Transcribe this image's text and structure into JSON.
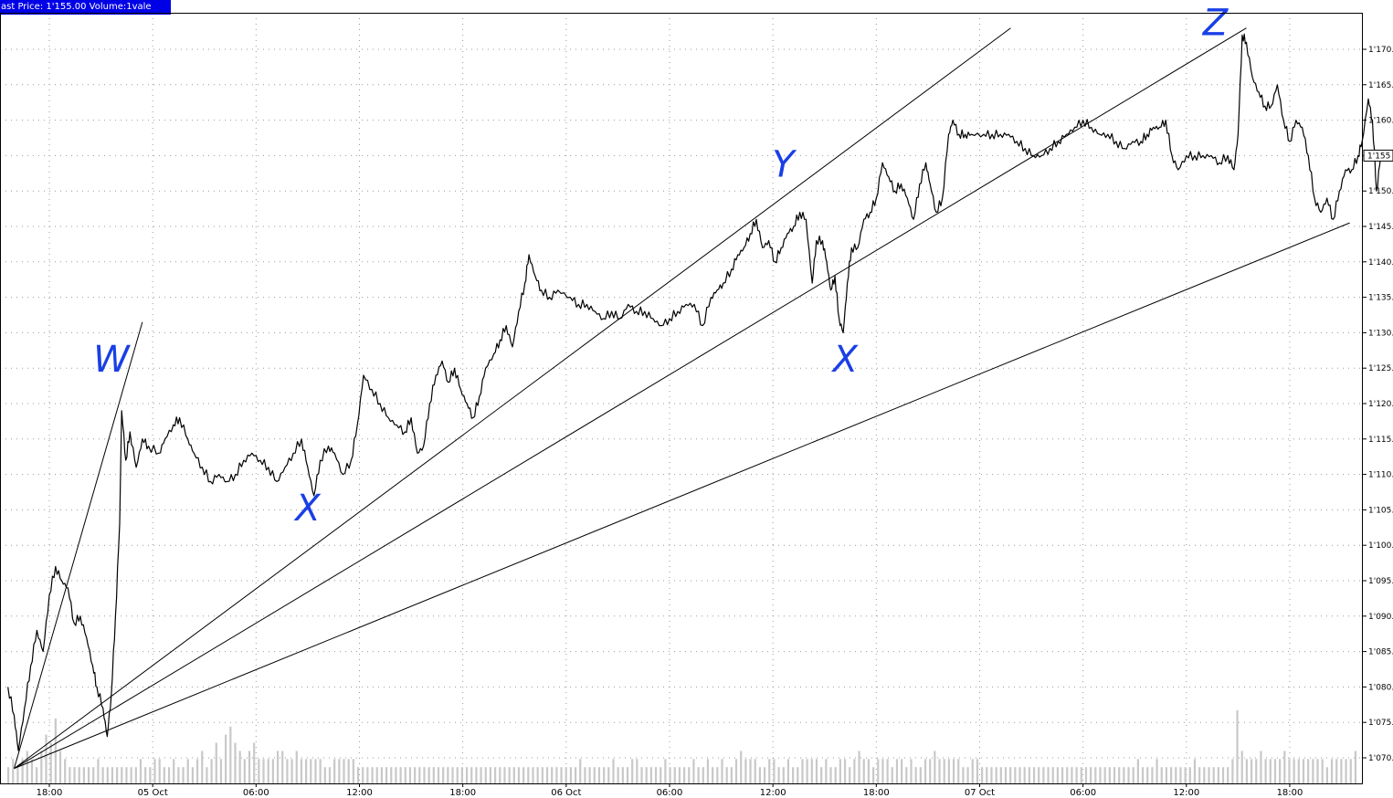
{
  "header": {
    "label": "ast Price: 1'155.00 Volume:1vale"
  },
  "colors": {
    "price_line": "#000000",
    "volume": "#c8c8c8",
    "grid": "#9a9a9a",
    "labels": "#1a3fe6",
    "header_bg": "#0000e6"
  },
  "last_price_label": "1'155",
  "chart_data": {
    "type": "line",
    "title": "",
    "xlabel": "",
    "ylabel": "",
    "ylim": [
      1068,
      1174
    ],
    "xlim": [
      0,
      68
    ],
    "grid": true,
    "y_ticks": [
      {
        "value": 1070,
        "label": "1'070."
      },
      {
        "value": 1075,
        "label": "1'075."
      },
      {
        "value": 1080,
        "label": "1'080."
      },
      {
        "value": 1085,
        "label": "1'085."
      },
      {
        "value": 1090,
        "label": "1'090."
      },
      {
        "value": 1095,
        "label": "1'095."
      },
      {
        "value": 1100,
        "label": "1'100."
      },
      {
        "value": 1105,
        "label": "1'105."
      },
      {
        "value": 1110,
        "label": "1'110."
      },
      {
        "value": 1115,
        "label": "1'115."
      },
      {
        "value": 1120,
        "label": "1'120."
      },
      {
        "value": 1125,
        "label": "1'125."
      },
      {
        "value": 1130,
        "label": "1'130."
      },
      {
        "value": 1135,
        "label": "1'135."
      },
      {
        "value": 1140,
        "label": "1'140."
      },
      {
        "value": 1145,
        "label": "1'145."
      },
      {
        "value": 1150,
        "label": "1'150."
      },
      {
        "value": 1155,
        "label": "1'155."
      },
      {
        "value": 1160,
        "label": "1'160."
      },
      {
        "value": 1165,
        "label": "1'165."
      },
      {
        "value": 1170,
        "label": "1'170."
      }
    ],
    "x_ticks": [
      {
        "value": 2,
        "label": "18:00"
      },
      {
        "value": 7,
        "label": "05 Oct"
      },
      {
        "value": 12,
        "label": "06:00"
      },
      {
        "value": 17,
        "label": "12:00"
      },
      {
        "value": 22,
        "label": "18:00"
      },
      {
        "value": 27,
        "label": "06 Oct"
      },
      {
        "value": 32,
        "label": "06:00"
      },
      {
        "value": 37,
        "label": "12:00"
      },
      {
        "value": 42,
        "label": "18:00"
      },
      {
        "value": 47,
        "label": "07 Oct"
      },
      {
        "value": 52,
        "label": "06:00"
      },
      {
        "value": 57,
        "label": "12:00"
      },
      {
        "value": 62,
        "label": "18:00"
      }
    ],
    "series": [
      {
        "points": [
          [
            0.0,
            1080
          ],
          [
            0.3,
            1076
          ],
          [
            0.5,
            1071
          ],
          [
            0.8,
            1077
          ],
          [
            1.1,
            1083
          ],
          [
            1.4,
            1088
          ],
          [
            1.7,
            1085
          ],
          [
            2.0,
            1093
          ],
          [
            2.3,
            1097
          ],
          [
            2.6,
            1095
          ],
          [
            2.9,
            1094
          ],
          [
            3.2,
            1089
          ],
          [
            3.5,
            1090
          ],
          [
            3.8,
            1087
          ],
          [
            4.1,
            1083
          ],
          [
            4.3,
            1080
          ],
          [
            4.6,
            1077
          ],
          [
            4.8,
            1073
          ],
          [
            5.0,
            1079
          ],
          [
            5.2,
            1090
          ],
          [
            5.4,
            1103
          ],
          [
            5.5,
            1119
          ],
          [
            5.7,
            1112
          ],
          [
            5.9,
            1116
          ],
          [
            6.2,
            1111
          ],
          [
            6.5,
            1115
          ],
          [
            6.8,
            1114
          ],
          [
            7.3,
            1113
          ],
          [
            7.6,
            1115
          ],
          [
            8.0,
            1117
          ],
          [
            8.3,
            1118
          ],
          [
            8.7,
            1115
          ],
          [
            9.0,
            1113
          ],
          [
            9.4,
            1111
          ],
          [
            9.8,
            1109
          ],
          [
            10.2,
            1110
          ],
          [
            10.6,
            1109
          ],
          [
            11.0,
            1110
          ],
          [
            11.4,
            1112
          ],
          [
            11.8,
            1113
          ],
          [
            12.2,
            1112
          ],
          [
            12.6,
            1111
          ],
          [
            13.0,
            1109
          ],
          [
            13.4,
            1111
          ],
          [
            13.8,
            1113
          ],
          [
            14.2,
            1115
          ],
          [
            14.5,
            1111
          ],
          [
            14.8,
            1107
          ],
          [
            15.1,
            1112
          ],
          [
            15.5,
            1114
          ],
          [
            15.8,
            1113
          ],
          [
            16.2,
            1110
          ],
          [
            16.6,
            1112
          ],
          [
            16.9,
            1117
          ],
          [
            17.2,
            1124
          ],
          [
            17.6,
            1122
          ],
          [
            18.0,
            1120
          ],
          [
            18.4,
            1118
          ],
          [
            18.8,
            1117
          ],
          [
            19.2,
            1116
          ],
          [
            19.5,
            1118
          ],
          [
            19.8,
            1113
          ],
          [
            20.1,
            1114
          ],
          [
            20.4,
            1120
          ],
          [
            20.7,
            1124
          ],
          [
            21.0,
            1126
          ],
          [
            21.3,
            1123
          ],
          [
            21.6,
            1125
          ],
          [
            21.9,
            1122
          ],
          [
            22.2,
            1120
          ],
          [
            22.5,
            1118
          ],
          [
            22.8,
            1121
          ],
          [
            23.1,
            1125
          ],
          [
            23.5,
            1127
          ],
          [
            23.8,
            1129
          ],
          [
            24.1,
            1131
          ],
          [
            24.4,
            1128
          ],
          [
            24.7,
            1133
          ],
          [
            25.0,
            1137
          ],
          [
            25.2,
            1141
          ],
          [
            25.5,
            1138
          ],
          [
            25.8,
            1136
          ],
          [
            26.2,
            1135
          ],
          [
            26.6,
            1136
          ],
          [
            27.2,
            1135
          ],
          [
            27.6,
            1134
          ],
          [
            28.0,
            1134
          ],
          [
            28.4,
            1133
          ],
          [
            28.8,
            1132
          ],
          [
            29.2,
            1133
          ],
          [
            29.6,
            1132
          ],
          [
            30.0,
            1134
          ],
          [
            30.4,
            1133
          ],
          [
            30.8,
            1133
          ],
          [
            31.2,
            1132
          ],
          [
            31.6,
            1131
          ],
          [
            32.0,
            1132
          ],
          [
            32.4,
            1133
          ],
          [
            32.8,
            1134
          ],
          [
            33.2,
            1134
          ],
          [
            33.6,
            1131
          ],
          [
            34.0,
            1135
          ],
          [
            34.3,
            1136
          ],
          [
            34.6,
            1137
          ],
          [
            35.0,
            1139
          ],
          [
            35.3,
            1141
          ],
          [
            35.6,
            1142
          ],
          [
            35.9,
            1144
          ],
          [
            36.2,
            1146
          ],
          [
            36.5,
            1142
          ],
          [
            36.8,
            1143
          ],
          [
            37.1,
            1140
          ],
          [
            37.4,
            1142
          ],
          [
            37.7,
            1144
          ],
          [
            38.0,
            1145
          ],
          [
            38.3,
            1147
          ],
          [
            38.6,
            1146
          ],
          [
            38.9,
            1137
          ],
          [
            39.1,
            1143
          ],
          [
            39.4,
            1143
          ],
          [
            39.6,
            1140
          ],
          [
            39.8,
            1136
          ],
          [
            40.0,
            1138
          ],
          [
            40.2,
            1132
          ],
          [
            40.4,
            1130
          ],
          [
            40.6,
            1137
          ],
          [
            40.8,
            1142
          ],
          [
            41.1,
            1142
          ],
          [
            41.4,
            1146
          ],
          [
            41.7,
            1147
          ],
          [
            42.0,
            1149
          ],
          [
            42.3,
            1154
          ],
          [
            42.6,
            1152
          ],
          [
            42.9,
            1150
          ],
          [
            43.2,
            1151
          ],
          [
            43.5,
            1149
          ],
          [
            43.8,
            1146
          ],
          [
            44.1,
            1151
          ],
          [
            44.4,
            1154
          ],
          [
            44.6,
            1151
          ],
          [
            44.9,
            1147
          ],
          [
            45.2,
            1149
          ],
          [
            45.5,
            1158
          ],
          [
            45.7,
            1160
          ],
          [
            46.0,
            1158
          ],
          [
            46.3,
            1158
          ],
          [
            46.6,
            1158
          ],
          [
            47.2,
            1158
          ],
          [
            47.6,
            1158
          ],
          [
            48.0,
            1158
          ],
          [
            48.4,
            1158
          ],
          [
            48.8,
            1157
          ],
          [
            49.2,
            1156
          ],
          [
            49.6,
            1155
          ],
          [
            50.0,
            1155
          ],
          [
            50.4,
            1156
          ],
          [
            50.8,
            1157
          ],
          [
            51.2,
            1158
          ],
          [
            51.6,
            1159
          ],
          [
            52.0,
            1160
          ],
          [
            52.4,
            1159
          ],
          [
            52.8,
            1158
          ],
          [
            53.2,
            1158
          ],
          [
            53.6,
            1157
          ],
          [
            54.0,
            1156
          ],
          [
            54.4,
            1157
          ],
          [
            54.8,
            1157
          ],
          [
            55.1,
            1158
          ],
          [
            55.4,
            1159
          ],
          [
            55.7,
            1159
          ],
          [
            56.0,
            1160
          ],
          [
            56.3,
            1155
          ],
          [
            56.6,
            1153
          ],
          [
            57.0,
            1155
          ],
          [
            57.4,
            1155
          ],
          [
            57.8,
            1155
          ],
          [
            58.2,
            1155
          ],
          [
            58.6,
            1154
          ],
          [
            59.0,
            1155
          ],
          [
            59.3,
            1153
          ],
          [
            59.5,
            1158
          ],
          [
            59.7,
            1172
          ],
          [
            59.9,
            1171
          ],
          [
            60.2,
            1166
          ],
          [
            60.5,
            1164
          ],
          [
            60.8,
            1162
          ],
          [
            61.1,
            1162
          ],
          [
            61.4,
            1165
          ],
          [
            61.7,
            1160
          ],
          [
            62.0,
            1157
          ],
          [
            62.3,
            1160
          ],
          [
            62.6,
            1159
          ],
          [
            62.9,
            1155
          ],
          [
            63.2,
            1149
          ],
          [
            63.5,
            1147
          ],
          [
            63.8,
            1149
          ],
          [
            64.1,
            1146
          ],
          [
            64.4,
            1150
          ],
          [
            64.7,
            1153
          ],
          [
            65.0,
            1153
          ],
          [
            65.3,
            1155
          ],
          [
            65.5,
            1157
          ],
          [
            65.8,
            1163
          ],
          [
            66.0,
            1160
          ],
          [
            66.2,
            1150
          ],
          [
            66.4,
            1155
          ]
        ]
      }
    ],
    "volume": [
      2,
      3,
      2,
      3,
      4,
      3,
      2,
      4,
      6,
      5,
      8,
      4,
      3,
      2,
      2,
      2,
      2,
      2,
      2,
      3,
      2,
      2,
      2,
      2,
      2,
      2,
      2,
      2,
      3,
      2,
      2,
      3,
      3,
      2,
      2,
      3,
      2,
      2,
      3,
      2,
      3,
      4,
      2,
      3,
      5,
      3,
      6,
      7,
      5,
      4,
      3,
      4,
      5,
      3,
      3,
      3,
      3,
      4,
      4,
      3,
      3,
      4,
      3,
      3,
      3,
      3,
      3,
      2,
      2,
      3,
      3,
      3,
      3,
      3,
      2,
      2,
      2,
      2,
      2,
      2,
      2,
      2,
      2,
      2,
      2,
      2,
      2,
      2,
      2,
      2,
      2,
      2,
      2,
      2,
      2,
      2,
      2,
      2,
      2,
      2,
      2,
      2,
      2,
      2,
      2,
      2,
      2,
      2,
      2,
      2,
      2,
      2,
      2,
      2,
      2,
      2,
      2,
      2,
      2,
      2,
      2,
      3,
      2,
      2,
      2,
      2,
      2,
      2,
      3,
      2,
      2,
      2,
      3,
      3,
      2,
      2,
      2,
      2,
      2,
      3,
      2,
      2,
      2,
      2,
      2,
      3,
      2,
      2,
      3,
      2,
      2,
      3,
      2,
      2,
      3,
      4,
      3,
      3,
      3,
      2,
      2,
      3,
      3,
      2,
      2,
      3,
      2,
      2,
      3,
      3,
      3,
      3,
      2,
      3,
      2,
      2,
      3,
      3,
      2,
      3,
      4,
      3,
      3,
      2,
      3,
      3,
      3,
      2,
      3,
      3,
      2,
      3,
      2,
      2,
      3,
      3,
      4,
      3,
      3,
      3,
      3,
      3,
      2,
      2,
      3,
      3,
      2,
      2,
      2,
      2,
      2,
      2,
      2,
      2,
      2,
      2,
      2,
      2,
      2,
      2,
      2,
      2,
      2,
      2,
      2,
      2,
      2,
      2,
      2,
      2,
      2,
      2,
      2,
      2,
      2,
      2,
      2,
      2,
      2,
      3,
      2,
      2,
      2,
      3,
      2,
      2,
      2,
      2,
      2,
      2,
      2,
      3,
      2,
      2,
      2,
      2,
      2,
      2,
      2,
      3,
      9,
      4,
      3,
      3,
      3,
      4,
      3,
      3,
      3,
      3,
      4,
      3,
      3,
      3,
      3,
      3,
      3,
      3,
      3,
      2,
      3,
      3,
      3,
      3,
      3,
      4
    ],
    "trendlines": [
      {
        "from": [
          0.3,
          1068.5
        ],
        "to": [
          6.5,
          1131.5
        ]
      },
      {
        "from": [
          0.3,
          1068.5
        ],
        "to": [
          48.5,
          1173.0
        ]
      },
      {
        "from": [
          0.3,
          1068.5
        ],
        "to": [
          59.9,
          1173.0
        ]
      },
      {
        "from": [
          0.3,
          1068.5
        ],
        "to": [
          64.9,
          1145.5
        ]
      }
    ],
    "annotations": [
      {
        "text": "W",
        "x": 5.0,
        "y": 1124.5
      },
      {
        "text": "X",
        "x": 14.5,
        "y": 1103.5
      },
      {
        "text": "Y",
        "x": 37.5,
        "y": 1152.0
      },
      {
        "text": "X",
        "x": 40.5,
        "y": 1124.5
      },
      {
        "text": "Z",
        "x": 58.4,
        "y": 1172.0
      }
    ],
    "last_value": 1155
  }
}
